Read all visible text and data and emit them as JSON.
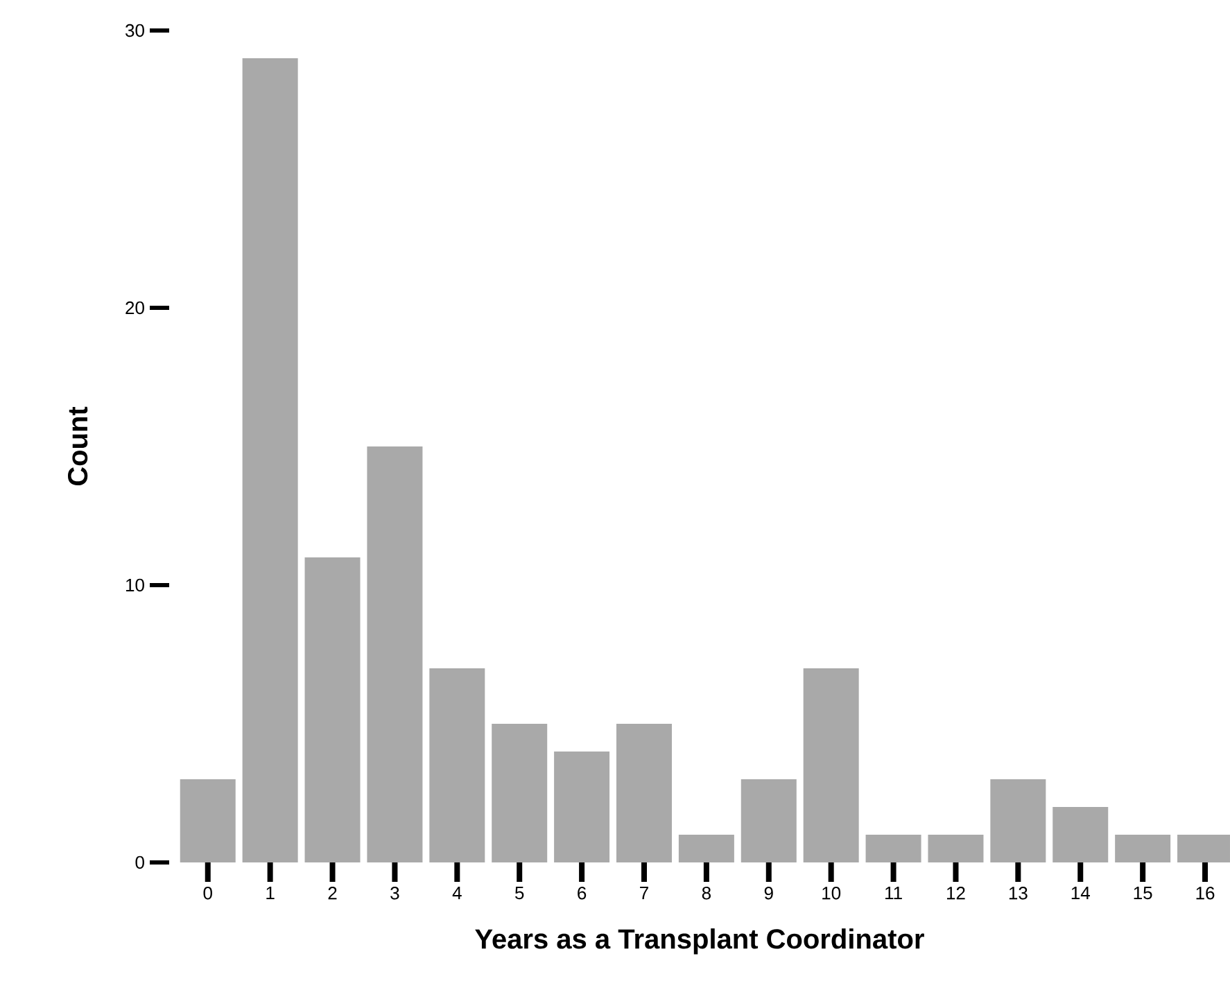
{
  "chart_data": {
    "type": "bar",
    "xlabel": "Years as a Transplant Coordinator",
    "ylabel": "Count",
    "categories": [
      "0",
      "1",
      "2",
      "3",
      "4",
      "5",
      "6",
      "7",
      "8",
      "9",
      "10",
      "11",
      "12",
      "13",
      "14",
      "15",
      "16"
    ],
    "values": [
      3,
      29,
      11,
      15,
      7,
      5,
      4,
      5,
      1,
      3,
      7,
      1,
      1,
      3,
      2,
      1,
      1
    ],
    "color": "#a9a9a9",
    "ylim": [
      0,
      30
    ],
    "yticks": [
      0,
      10,
      20,
      30
    ]
  }
}
